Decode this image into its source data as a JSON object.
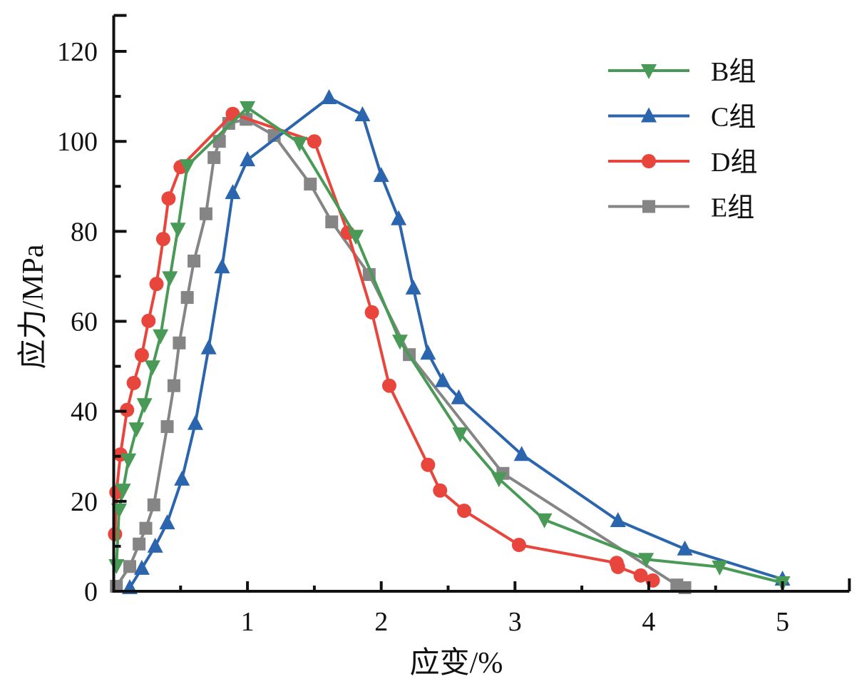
{
  "chart_data": {
    "type": "line",
    "title": "",
    "xlabel": "应变/%",
    "ylabel": "应力/MPa",
    "xlim": [
      0,
      5.5
    ],
    "ylim": [
      0,
      128
    ],
    "xticks": [
      1,
      2,
      3,
      4,
      5
    ],
    "xtick_labels": [
      "1",
      "2",
      "3",
      "4",
      "5"
    ],
    "xminor_ticks": [
      0.5,
      1.5,
      2.5,
      3.5,
      4.5
    ],
    "yticks": [
      0,
      20,
      40,
      60,
      80,
      100,
      120
    ],
    "ytick_labels": [
      "0",
      "20",
      "40",
      "60",
      "80",
      "100",
      "120"
    ],
    "yminor_ticks": [
      10,
      30,
      50,
      70,
      90,
      110
    ],
    "grid": false,
    "legend_position": "top-right",
    "series": [
      {
        "name": "B组",
        "color": "#4a9a57",
        "marker": "triangle-down",
        "x": [
          0.02,
          0.04,
          0.07,
          0.11,
          0.17,
          0.23,
          0.29,
          0.35,
          0.42,
          0.48,
          0.55,
          1.0,
          1.39,
          1.81,
          2.14,
          2.59,
          2.88,
          3.22,
          3.98,
          4.53,
          5.0
        ],
        "y": [
          5.7,
          18.1,
          22.5,
          29.2,
          36.1,
          41.5,
          49.9,
          56.8,
          69.7,
          80.5,
          94.6,
          107.5,
          99.6,
          78.9,
          55.6,
          35.0,
          25.0,
          15.9,
          7.1,
          5.4,
          1.9
        ]
      },
      {
        "name": "C组",
        "color": "#2a65ad",
        "marker": "triangle-up",
        "x": [
          0.12,
          0.21,
          0.31,
          0.4,
          0.51,
          0.61,
          0.71,
          0.81,
          0.89,
          1.0,
          1.61,
          1.86,
          2.0,
          2.13,
          2.24,
          2.35,
          2.46,
          2.58,
          3.05,
          3.77,
          4.27,
          5.0
        ],
        "y": [
          0.8,
          5.1,
          10.0,
          15.2,
          24.9,
          37.3,
          54.1,
          72.1,
          88.6,
          95.9,
          109.7,
          105.9,
          92.4,
          82.8,
          67.4,
          52.9,
          46.8,
          43.0,
          30.4,
          15.7,
          9.4,
          2.7
        ]
      },
      {
        "name": "D组",
        "color": "#e8453c",
        "marker": "circle",
        "x": [
          0.01,
          0.02,
          0.05,
          0.1,
          0.15,
          0.21,
          0.26,
          0.32,
          0.37,
          0.41,
          0.5,
          0.89,
          1.5,
          1.75,
          1.93,
          2.06,
          2.35,
          2.44,
          2.62,
          3.03,
          3.76,
          3.77,
          3.94,
          4.03
        ],
        "y": [
          12.7,
          22.0,
          30.4,
          40.3,
          46.3,
          52.5,
          60.1,
          68.3,
          78.3,
          87.3,
          94.3,
          106.1,
          100.0,
          79.7,
          62.0,
          45.7,
          28.1,
          22.4,
          17.9,
          10.3,
          6.3,
          5.4,
          3.5,
          2.4
        ]
      },
      {
        "name": "E组",
        "color": "#858585",
        "marker": "square",
        "x": [
          0.02,
          0.12,
          0.19,
          0.24,
          0.3,
          0.4,
          0.45,
          0.49,
          0.55,
          0.6,
          0.69,
          0.75,
          0.79,
          0.86,
          0.99,
          1.2,
          1.47,
          1.63,
          1.91,
          2.21,
          2.91,
          4.21,
          4.27
        ],
        "y": [
          1.1,
          5.5,
          10.5,
          14.0,
          19.2,
          36.6,
          45.7,
          55.2,
          65.3,
          73.4,
          83.9,
          96.4,
          100.0,
          104.0,
          104.9,
          101.3,
          90.5,
          82.1,
          70.4,
          52.6,
          26.2,
          1.4,
          0.8
        ]
      }
    ]
  }
}
